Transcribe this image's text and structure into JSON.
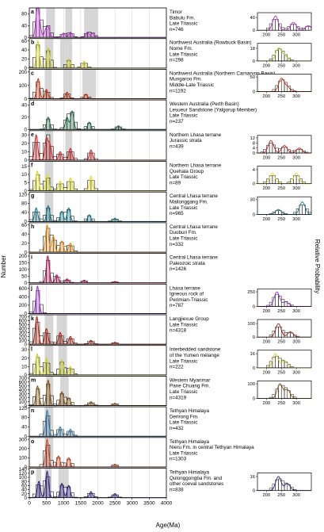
{
  "figure": {
    "y_axis_label": "Number",
    "x_axis_label": "Age(Ma)",
    "right_axis_label": "Relative Probability"
  },
  "chart_data": {
    "type": "histogram",
    "x_ticks": [
      0,
      500,
      1000,
      1500,
      2000,
      2500,
      3000,
      3500,
      4000
    ],
    "xlim": [
      0,
      4000
    ],
    "grid": true,
    "inset_x_ticks": [
      200,
      250,
      300
    ],
    "panels": [
      {
        "letter": "a",
        "lines": [
          "Timor",
          "Babulu Fm.",
          "Late Triassic",
          "n=746"
        ],
        "y_ticks": [
          0,
          40,
          80
        ],
        "ymax": 100,
        "color": "#bb33cc",
        "shades": [
          [
            500,
            750
          ],
          [
            1050,
            1250
          ],
          [
            1600,
            2000
          ]
        ],
        "peaks": [
          [
            230,
            90
          ],
          [
            300,
            40
          ],
          [
            480,
            25
          ],
          [
            560,
            30
          ],
          [
            1000,
            15
          ],
          [
            1200,
            18
          ],
          [
            1700,
            18
          ],
          [
            1850,
            15
          ]
        ],
        "inset": {
          "y_ticks": [
            0,
            40
          ],
          "ymax": 55,
          "peaks": [
            [
              230,
              45
            ],
            [
              290,
              25
            ],
            [
              340,
              15
            ]
          ]
        }
      },
      {
        "letter": "b",
        "lines": [
          "Northwest Australia (Rowbuck Basin)",
          "Nome Fm.",
          "Late Triassic",
          "n=298"
        ],
        "y_ticks": [
          0,
          20,
          40,
          60
        ],
        "ymax": 65,
        "color": "#cccc22",
        "shades": [
          [
            450,
            700
          ],
          [
            900,
            1250
          ]
        ],
        "peaks": [
          [
            250,
            60
          ],
          [
            550,
            45
          ],
          [
            1150,
            20
          ],
          [
            1600,
            15
          ]
        ],
        "inset": {
          "y_ticks": [
            0,
            18
          ],
          "ymax": 25,
          "peaks": [
            [
              240,
              18
            ],
            [
              260,
              8
            ]
          ]
        }
      },
      {
        "letter": "c",
        "lines": [
          "Northwest Australia (Northern Carnarvon Basin)",
          "Mungaroo Fm.",
          "Middle-Late Triassic",
          "n=1192"
        ],
        "y_ticks": [
          0,
          100,
          200
        ],
        "ymax": 220,
        "color": "#cc3311",
        "shades": [
          [
            450,
            650
          ],
          [
            1000,
            1250
          ],
          [
            1550,
            1950
          ]
        ],
        "peaks": [
          [
            260,
            150
          ],
          [
            500,
            70
          ],
          [
            1100,
            50
          ],
          [
            1650,
            35
          ]
        ],
        "inset": {
          "y_ticks": [
            0,
            50
          ],
          "ymax": 60,
          "peaks": [
            [
              250,
              45
            ],
            [
              270,
              15
            ]
          ]
        }
      },
      {
        "letter": "d",
        "lines": [
          "Western Australia (Perth Basin)",
          "Lesueur Sandstone (Yalgorup Member)",
          "Late Triassic",
          "n=237"
        ],
        "y_ticks": [
          0,
          20,
          40
        ],
        "ymax": 48,
        "color": "#226644",
        "shades": [],
        "peaks": [
          [
            550,
            20
          ],
          [
            1100,
            20
          ],
          [
            1250,
            30
          ],
          [
            1750,
            12
          ],
          [
            2600,
            6
          ]
        ],
        "inset": null
      },
      {
        "letter": "e",
        "lines": [
          "Northern Lhasa terrane",
          "Jurassic strata",
          "n=439"
        ],
        "y_ticks": [
          0,
          10,
          20,
          30
        ],
        "ymax": 35,
        "color": "#cc2222",
        "shades": [
          [
            450,
            700
          ],
          [
            1050,
            1250
          ]
        ],
        "peaks": [
          [
            200,
            30
          ],
          [
            500,
            25
          ],
          [
            600,
            18
          ],
          [
            900,
            10
          ],
          [
            1200,
            14
          ],
          [
            1800,
            12
          ]
        ],
        "inset": {
          "y_ticks": [
            0,
            4,
            8,
            12
          ],
          "ymax": 14,
          "peaks": [
            [
              215,
              10
            ],
            [
              260,
              6
            ],
            [
              310,
              4
            ]
          ]
        }
      },
      {
        "letter": "f",
        "lines": [
          "Northern Lhasa terrane",
          "Quehala Group",
          "Late Triassic",
          "n=89"
        ],
        "y_ticks": [
          0,
          5,
          10,
          15
        ],
        "ymax": 18,
        "color": "#dddd22",
        "shades": [
          [
            450,
            700
          ]
        ],
        "peaks": [
          [
            230,
            12
          ],
          [
            520,
            10
          ],
          [
            900,
            6
          ],
          [
            1200,
            8
          ],
          [
            1800,
            9
          ]
        ],
        "inset": {
          "y_ticks": [
            0,
            4
          ],
          "ymax": 5,
          "peaks": [
            [
              220,
              3
            ],
            [
              300,
              3
            ]
          ]
        }
      },
      {
        "letter": "g",
        "lines": [
          "Central Lhasa terrane",
          "Mailonggang Fm.",
          "Late Triassic",
          "n=965"
        ],
        "y_ticks": [
          0,
          40,
          80,
          120
        ],
        "ymax": 130,
        "color": "#117788",
        "shades": [
          [
            450,
            700
          ]
        ],
        "peaks": [
          [
            200,
            60
          ],
          [
            550,
            70
          ],
          [
            950,
            45
          ],
          [
            1150,
            60
          ],
          [
            1750,
            30
          ],
          [
            2500,
            15
          ]
        ],
        "inset": {
          "y_ticks": [
            0,
            30
          ],
          "ymax": 35,
          "peaks": [
            [
              240,
              10
            ],
            [
              320,
              25
            ]
          ]
        }
      },
      {
        "letter": "h",
        "lines": [
          "Central Lhasa terrane",
          "Duoburi Fm.",
          "Late Triassic",
          "n=332"
        ],
        "y_ticks": [
          0,
          20,
          40,
          60
        ],
        "ymax": 65,
        "color": "#dd8811",
        "shades": [],
        "peaks": [
          [
            520,
            60
          ],
          [
            700,
            35
          ],
          [
            950,
            25
          ],
          [
            1200,
            20
          ]
        ],
        "inset": null
      },
      {
        "letter": "i",
        "lines": [
          "Central Lhasa terrane",
          "Paleozoic strata",
          "n=1426"
        ],
        "y_ticks": [
          0,
          50,
          100,
          150,
          200
        ],
        "ymax": 220,
        "color": "#aa1155",
        "shades": [],
        "peaks": [
          [
            540,
            200
          ],
          [
            800,
            60
          ],
          [
            1100,
            30
          ],
          [
            1600,
            20
          ],
          [
            2500,
            10
          ]
        ],
        "inset": null
      },
      {
        "letter": "j",
        "lines": [
          "Lhasa terrane",
          "Igneous rock of",
          "Perimian-Triassic",
          "n=787"
        ],
        "y_ticks": [
          0,
          200,
          400,
          600
        ],
        "ymax": 700,
        "color": "#9933cc",
        "shades": [],
        "peaks": [
          [
            240,
            650
          ]
        ],
        "inset": {
          "y_ticks": [
            0,
            250
          ],
          "ymax": 300,
          "peaks": [
            [
              235,
              250
            ],
            [
              265,
              80
            ]
          ]
        }
      },
      {
        "letter": "k",
        "lines": [
          "Langjiexue Group",
          "Late Triassic",
          "n=4318"
        ],
        "y_ticks": [
          0,
          100,
          200,
          300,
          400,
          500,
          600,
          700
        ],
        "ymax": 750,
        "color": "#aa2211",
        "shades": [
          [
            450,
            700
          ],
          [
            800,
            1100
          ]
        ],
        "peaks": [
          [
            220,
            700
          ],
          [
            500,
            400
          ],
          [
            900,
            300
          ],
          [
            1200,
            200
          ],
          [
            1800,
            100
          ],
          [
            2500,
            50
          ]
        ],
        "inset": {
          "y_ticks": [
            0,
            100
          ],
          "ymax": 130,
          "peaks": [
            [
              240,
              100
            ],
            [
              280,
              40
            ]
          ]
        }
      },
      {
        "letter": "l",
        "lines": [
          "Interbedded sandstone",
          "of the Yumen mélange",
          "Late Triassic",
          "n=222"
        ],
        "y_ticks": [
          0,
          10,
          20,
          30
        ],
        "ymax": 35,
        "color": "#cccc22",
        "shades": [
          [
            450,
            700
          ],
          [
            850,
            1100
          ]
        ],
        "peaks": [
          [
            230,
            25
          ],
          [
            500,
            20
          ],
          [
            950,
            18
          ],
          [
            1200,
            10
          ]
        ],
        "inset": {
          "y_ticks": [
            0,
            16
          ],
          "ymax": 20,
          "peaks": [
            [
              230,
              16
            ],
            [
              260,
              8
            ]
          ]
        }
      },
      {
        "letter": "m",
        "lines": [
          "Western Myanmar",
          "Pane Chuang Fm.",
          "Late Triassic",
          "n=4319"
        ],
        "y_ticks": [
          0,
          100,
          200,
          300,
          400,
          500,
          600,
          700
        ],
        "ymax": 750,
        "color": "#885511",
        "shades": [
          [
            500,
            700
          ],
          [
            900,
            1150
          ]
        ],
        "peaks": [
          [
            240,
            500
          ],
          [
            550,
            650
          ],
          [
            950,
            350
          ],
          [
            1150,
            200
          ],
          [
            1800,
            100
          ],
          [
            2500,
            60
          ]
        ],
        "inset": {
          "y_ticks": [
            0,
            100
          ],
          "ymax": 120,
          "peaks": [
            [
              245,
              100
            ],
            [
              270,
              60
            ]
          ]
        }
      },
      {
        "letter": "n",
        "lines": [
          "Tethyan Himalaya",
          "Derirong Fm.",
          "Late Triassic",
          "n=432"
        ],
        "y_ticks": [
          0,
          40,
          80,
          120
        ],
        "ymax": 125,
        "color": "#3377aa",
        "shades": [
          [
            450,
            700
          ]
        ],
        "peaks": [
          [
            520,
            110
          ],
          [
            900,
            40
          ],
          [
            1200,
            30
          ]
        ],
        "inset": null
      },
      {
        "letter": "o",
        "lines": [
          "Tethyan Himalaya",
          "Nieru Fm. in central Tethyan Himalaya",
          "Late Triassic",
          "n=1303"
        ],
        "y_ticks": [
          0,
          100,
          200,
          300
        ],
        "ymax": 320,
        "color": "#cc4422",
        "shades": [
          [
            450,
            700
          ]
        ],
        "peaks": [
          [
            520,
            300
          ],
          [
            850,
            120
          ],
          [
            1150,
            100
          ],
          [
            2500,
            30
          ]
        ],
        "inset": null
      },
      {
        "letter": "p",
        "lines": [
          "Tethyan Himalaya",
          "Qulonggongba Fm. and",
          "other coeval sandstones",
          "n=838"
        ],
        "y_ticks": [
          0,
          20,
          40,
          60,
          80,
          100,
          120,
          140
        ],
        "ymax": 145,
        "color": "#332288",
        "shades": [
          [
            200,
            350
          ],
          [
            450,
            650
          ],
          [
            850,
            1150
          ]
        ],
        "peaks": [
          [
            280,
            80
          ],
          [
            520,
            130
          ],
          [
            950,
            70
          ],
          [
            1150,
            60
          ],
          [
            1800,
            30
          ],
          [
            2500,
            20
          ]
        ],
        "inset": {
          "y_ticks": [
            0,
            16
          ],
          "ymax": 20,
          "peaks": [
            [
              240,
              16
            ],
            [
              270,
              8
            ]
          ]
        }
      }
    ]
  }
}
